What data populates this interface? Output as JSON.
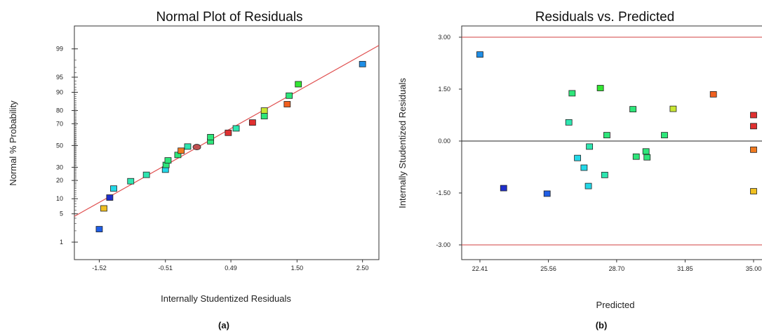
{
  "panel_a": {
    "title": "Normal Plot of Residuals",
    "xlabel": "Internally Studentized Residuals",
    "ylabel": "Normal % Probability",
    "caption": "(a)"
  },
  "panel_b": {
    "title": "Residuals vs. Predicted",
    "xlabel": "Predicted",
    "ylabel": "Internally Studentized Residuals",
    "caption": "(b)"
  },
  "chart_data": [
    {
      "type": "scatter",
      "title": "Normal Plot of Residuals",
      "xlabel": "Internally Studentized Residuals",
      "ylabel": "Normal % Probability",
      "x_ticks": [
        "-1.52",
        "-0.51",
        "0.49",
        "1.50",
        "2.50"
      ],
      "x_tick_values": [
        -1.52,
        -0.51,
        0.49,
        1.5,
        2.5
      ],
      "xlim": [
        -1.9,
        2.75
      ],
      "y_ticks": [
        "1",
        "5",
        "10",
        "20",
        "30",
        "50",
        "70",
        "80",
        "90",
        "95",
        "99"
      ],
      "y_tick_values": [
        1,
        5,
        10,
        20,
        30,
        50,
        70,
        80,
        90,
        95,
        99
      ],
      "ylim_probability": [
        0.3,
        99.8
      ],
      "y_scale": "normal-probability",
      "reference_line": {
        "color": "#e05050",
        "points": [
          [
            -1.9,
            4.4
          ],
          [
            2.75,
            99.2
          ]
        ]
      },
      "points": [
        {
          "x": -1.52,
          "y": 2.2,
          "color": "#1f5ee6",
          "marker": "square"
        },
        {
          "x": -1.45,
          "y": 6.5,
          "color": "#f0c020",
          "marker": "square"
        },
        {
          "x": -1.36,
          "y": 10.5,
          "color": "#1f2fcc",
          "marker": "square"
        },
        {
          "x": -1.3,
          "y": 15.0,
          "color": "#23d8e8",
          "marker": "square"
        },
        {
          "x": -1.04,
          "y": 19.5,
          "color": "#2ee6b0",
          "marker": "square"
        },
        {
          "x": -0.8,
          "y": 24.0,
          "color": "#2ee6b0",
          "marker": "square"
        },
        {
          "x": -0.51,
          "y": 28.0,
          "color": "#23d8e8",
          "marker": "square"
        },
        {
          "x": -0.5,
          "y": 32.0,
          "color": "#2ee67a",
          "marker": "square"
        },
        {
          "x": -0.47,
          "y": 36.0,
          "color": "#2ee67a",
          "marker": "square"
        },
        {
          "x": -0.32,
          "y": 41.0,
          "color": "#2ee67a",
          "marker": "square"
        },
        {
          "x": -0.27,
          "y": 45.0,
          "color": "#f07a20",
          "marker": "square"
        },
        {
          "x": -0.17,
          "y": 49.0,
          "color": "#2ee6b0",
          "marker": "square"
        },
        {
          "x": -0.03,
          "y": 48.5,
          "color": "#c05050",
          "marker": "ellipse"
        },
        {
          "x": 0.18,
          "y": 54.0,
          "color": "#2ee67a",
          "marker": "square"
        },
        {
          "x": 0.18,
          "y": 58.0,
          "color": "#2ee67a",
          "marker": "square"
        },
        {
          "x": 0.45,
          "y": 62.0,
          "color": "#e03030",
          "marker": "square"
        },
        {
          "x": 0.57,
          "y": 66.0,
          "color": "#2ee6b0",
          "marker": "square"
        },
        {
          "x": 0.82,
          "y": 71.0,
          "color": "#e03030",
          "marker": "square"
        },
        {
          "x": 1.0,
          "y": 76.0,
          "color": "#2ee67a",
          "marker": "square"
        },
        {
          "x": 1.0,
          "y": 80.0,
          "color": "#c8e632",
          "marker": "square"
        },
        {
          "x": 1.35,
          "y": 84.0,
          "color": "#f06020",
          "marker": "square"
        },
        {
          "x": 1.38,
          "y": 88.5,
          "color": "#2ee67a",
          "marker": "square"
        },
        {
          "x": 1.52,
          "y": 93.0,
          "color": "#32e632",
          "marker": "square"
        },
        {
          "x": 2.5,
          "y": 97.5,
          "color": "#1f8ee6",
          "marker": "square"
        }
      ]
    },
    {
      "type": "scatter",
      "title": "Residuals vs. Predicted",
      "xlabel": "Predicted",
      "ylabel": "Internally Studentized Residuals",
      "x_ticks": [
        "22.41",
        "25.56",
        "28.70",
        "31.85",
        "35.00"
      ],
      "x_tick_values": [
        22.41,
        25.56,
        28.7,
        31.85,
        35.0
      ],
      "xlim": [
        21.4,
        35.0
      ],
      "y_ticks": [
        "3.00",
        "1.50",
        "0.00",
        "-1.50",
        "-3.00"
      ],
      "y_tick_values": [
        3.0,
        1.5,
        0.0,
        -1.5,
        -3.0
      ],
      "ylim": [
        -3.5,
        3.2
      ],
      "limit_lines": {
        "color": "#d04040",
        "values": [
          3.0,
          -3.0
        ]
      },
      "zero_line": {
        "color": "#222222",
        "value": 0.0
      },
      "points": [
        {
          "x": 22.41,
          "y": 2.5,
          "color": "#1f8ee6"
        },
        {
          "x": 23.5,
          "y": -1.36,
          "color": "#1f2fcc"
        },
        {
          "x": 25.5,
          "y": -1.52,
          "color": "#1f5ee6"
        },
        {
          "x": 26.5,
          "y": 0.54,
          "color": "#2ee6b0"
        },
        {
          "x": 26.65,
          "y": 1.38,
          "color": "#2ee67a"
        },
        {
          "x": 26.9,
          "y": -0.49,
          "color": "#23d8e8"
        },
        {
          "x": 27.2,
          "y": -0.77,
          "color": "#23d8e8"
        },
        {
          "x": 27.4,
          "y": -1.3,
          "color": "#23d8e8"
        },
        {
          "x": 27.45,
          "y": -0.16,
          "color": "#2ee6b0"
        },
        {
          "x": 27.95,
          "y": 1.53,
          "color": "#32e632"
        },
        {
          "x": 28.15,
          "y": -0.98,
          "color": "#2ee6b0"
        },
        {
          "x": 28.25,
          "y": 0.17,
          "color": "#2ee67a"
        },
        {
          "x": 29.45,
          "y": 0.92,
          "color": "#2ee67a"
        },
        {
          "x": 29.6,
          "y": -0.45,
          "color": "#2ee67a"
        },
        {
          "x": 30.05,
          "y": -0.3,
          "color": "#2ee67a"
        },
        {
          "x": 30.1,
          "y": -0.47,
          "color": "#2ee67a"
        },
        {
          "x": 30.9,
          "y": 0.17,
          "color": "#2ee67a"
        },
        {
          "x": 31.3,
          "y": 0.93,
          "color": "#c8e632"
        },
        {
          "x": 33.15,
          "y": 1.35,
          "color": "#f06020"
        },
        {
          "x": 35.0,
          "y": 0.75,
          "color": "#e03030"
        },
        {
          "x": 35.0,
          "y": 0.43,
          "color": "#e03030"
        },
        {
          "x": 35.0,
          "y": -0.25,
          "color": "#f07a20"
        },
        {
          "x": 35.0,
          "y": -1.45,
          "color": "#f0c020"
        }
      ]
    }
  ]
}
